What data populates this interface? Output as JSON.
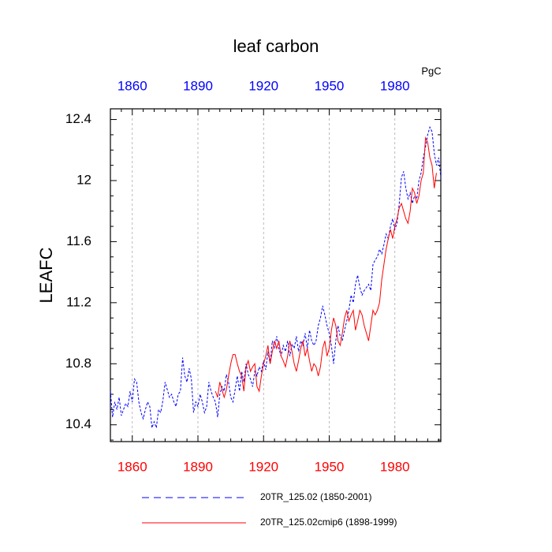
{
  "chart_data": {
    "type": "line",
    "title": "leaf carbon",
    "ylabel": "LEAFC",
    "units": "PgC",
    "x": [
      1850,
      1851,
      1852,
      1853,
      1854,
      1855,
      1856,
      1857,
      1858,
      1859,
      1860,
      1861,
      1862,
      1863,
      1864,
      1865,
      1866,
      1867,
      1868,
      1869,
      1870,
      1871,
      1872,
      1873,
      1874,
      1875,
      1876,
      1877,
      1878,
      1879,
      1880,
      1881,
      1882,
      1883,
      1884,
      1885,
      1886,
      1887,
      1888,
      1889,
      1890,
      1891,
      1892,
      1893,
      1894,
      1895,
      1896,
      1897,
      1898,
      1899,
      1900,
      1901,
      1902,
      1903,
      1904,
      1905,
      1906,
      1907,
      1908,
      1909,
      1910,
      1911,
      1912,
      1913,
      1914,
      1915,
      1916,
      1917,
      1918,
      1919,
      1920,
      1921,
      1922,
      1923,
      1924,
      1925,
      1926,
      1927,
      1928,
      1929,
      1930,
      1931,
      1932,
      1933,
      1934,
      1935,
      1936,
      1937,
      1938,
      1939,
      1940,
      1941,
      1942,
      1943,
      1944,
      1945,
      1946,
      1947,
      1948,
      1949,
      1950,
      1951,
      1952,
      1953,
      1954,
      1955,
      1956,
      1957,
      1958,
      1959,
      1960,
      1961,
      1962,
      1963,
      1964,
      1965,
      1966,
      1967,
      1968,
      1969,
      1970,
      1971,
      1972,
      1973,
      1974,
      1975,
      1976,
      1977,
      1978,
      1979,
      1980,
      1981,
      1982,
      1983,
      1984,
      1985,
      1986,
      1987,
      1988,
      1989,
      1990,
      1991,
      1992,
      1993,
      1994,
      1995,
      1996,
      1997,
      1998,
      1999,
      2000,
      2001
    ],
    "series": [
      {
        "name": "20TR_125.02 (1850-2001)",
        "color": "#0000ff",
        "dash": true,
        "values": [
          10.62,
          10.45,
          10.55,
          10.5,
          10.58,
          10.46,
          10.5,
          10.54,
          10.52,
          10.62,
          10.55,
          10.7,
          10.68,
          10.55,
          10.48,
          10.44,
          10.5,
          10.55,
          10.52,
          10.38,
          10.42,
          10.38,
          10.5,
          10.48,
          10.56,
          10.68,
          10.63,
          10.58,
          10.6,
          10.55,
          10.52,
          10.6,
          10.62,
          10.84,
          10.72,
          10.68,
          10.77,
          10.7,
          10.48,
          10.55,
          10.52,
          10.6,
          10.55,
          10.48,
          10.52,
          10.68,
          10.62,
          10.58,
          10.55,
          10.45,
          10.6,
          10.65,
          10.62,
          10.73,
          10.68,
          10.58,
          10.55,
          10.63,
          10.72,
          10.62,
          10.75,
          10.68,
          10.8,
          10.73,
          10.7,
          10.65,
          10.75,
          10.72,
          10.78,
          10.75,
          10.82,
          10.76,
          10.88,
          10.8,
          10.95,
          10.9,
          10.98,
          10.9,
          10.85,
          10.92,
          10.88,
          10.95,
          10.85,
          10.93,
          10.9,
          10.98,
          10.88,
          10.95,
          10.92,
          11.0,
          10.9,
          11.02,
          10.95,
          10.92,
          10.95,
          11.05,
          11.1,
          11.18,
          11.12,
          11.05,
          11.0,
          10.92,
          10.8,
          10.95,
          11.05,
          10.98,
          10.95,
          11.02,
          11.08,
          11.15,
          11.25,
          11.2,
          11.32,
          11.38,
          11.3,
          11.25,
          11.28,
          11.3,
          11.32,
          11.28,
          11.45,
          11.48,
          11.5,
          11.55,
          11.52,
          11.58,
          11.65,
          11.62,
          11.7,
          11.75,
          11.68,
          11.72,
          11.85,
          12.02,
          12.06,
          11.95,
          11.88,
          11.92,
          11.85,
          11.9,
          11.88,
          12.0,
          12.05,
          12.15,
          12.22,
          12.3,
          12.35,
          12.32,
          12.18,
          12.1,
          12.15,
          12.02
        ]
      },
      {
        "name": "20TR_125.02cmip6 (1898-1999)",
        "color": "#ff0000",
        "dash": false,
        "values": [
          null,
          null,
          null,
          null,
          null,
          null,
          null,
          null,
          null,
          null,
          null,
          null,
          null,
          null,
          null,
          null,
          null,
          null,
          null,
          null,
          null,
          null,
          null,
          null,
          null,
          null,
          null,
          null,
          null,
          null,
          null,
          null,
          null,
          null,
          null,
          null,
          null,
          null,
          null,
          null,
          null,
          null,
          null,
          null,
          null,
          null,
          null,
          null,
          10.62,
          10.58,
          10.68,
          10.63,
          10.58,
          10.63,
          10.72,
          10.8,
          10.86,
          10.86,
          10.8,
          10.75,
          10.72,
          10.62,
          10.78,
          10.82,
          10.75,
          10.78,
          10.8,
          10.65,
          10.62,
          10.72,
          10.8,
          10.85,
          10.92,
          10.8,
          10.88,
          10.95,
          10.9,
          10.95,
          10.85,
          10.82,
          10.78,
          10.85,
          10.95,
          10.88,
          10.8,
          10.75,
          10.82,
          10.9,
          10.95,
          10.85,
          10.9,
          10.82,
          10.75,
          10.8,
          10.78,
          10.72,
          10.78,
          10.9,
          10.95,
          10.85,
          10.9,
          11.02,
          11.1,
          11.05,
          10.95,
          10.92,
          11.0,
          11.1,
          11.15,
          11.08,
          11.12,
          11.15,
          11.02,
          11.08,
          11.15,
          11.12,
          11.05,
          11.0,
          10.95,
          11.05,
          11.15,
          11.12,
          11.15,
          11.2,
          11.35,
          11.45,
          11.55,
          11.62,
          11.68,
          11.62,
          11.7,
          11.75,
          11.82,
          11.85,
          11.8,
          11.75,
          11.72,
          11.8,
          11.95,
          11.92,
          11.85,
          11.9,
          12.0,
          12.05,
          12.28,
          12.25,
          12.15,
          12.1,
          11.95,
          12.05,
          null,
          null
        ]
      }
    ],
    "xlim": [
      1850,
      2001
    ],
    "xticks": [
      1860,
      1890,
      1920,
      1950,
      1980
    ],
    "xminorticks": [
      1855,
      1865,
      1870,
      1875,
      1880,
      1885,
      1895,
      1900,
      1905,
      1910,
      1915,
      1925,
      1930,
      1935,
      1940,
      1945,
      1955,
      1960,
      1965,
      1970,
      1975,
      1985,
      1990,
      1995,
      2000
    ],
    "ylim": [
      10.29,
      12.47
    ],
    "yticks": [
      10.4,
      10.8,
      11.2,
      11.6,
      12.0,
      12.4
    ],
    "yminorticks": [
      10.3,
      10.5,
      10.6,
      10.7,
      10.9,
      11.0,
      11.1,
      11.3,
      11.4,
      11.5,
      11.7,
      11.8,
      11.9,
      12.1,
      12.2,
      12.3
    ],
    "grid": true,
    "top_tick_color": "#0000ff",
    "bottom_tick_color": "#ff0000"
  }
}
